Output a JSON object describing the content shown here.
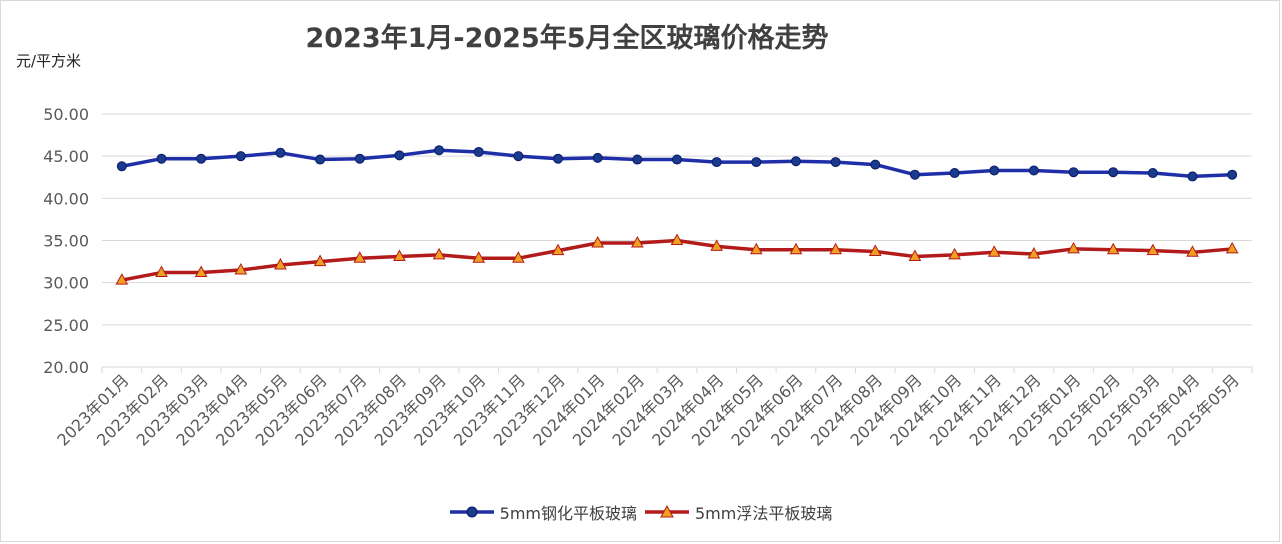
{
  "title": "2023年1月-2025年5月全区玻璃价格走势",
  "unit_label": "元/平方米",
  "colors": {
    "tempered": "#1f2fa8",
    "tempered_marker": "#1a3a8c",
    "float": "#b31b1b",
    "float_marker": "#f0a020",
    "grid": "#d9d9d9",
    "axis_text": "#595959"
  },
  "chart_data": {
    "type": "line",
    "title": "2023年1月-2025年5月全区玻璃价格走势",
    "ylabel": "元/平方米",
    "xlabel": "",
    "ylim": [
      20,
      50
    ],
    "yticks": [
      "20.00",
      "25.00",
      "30.00",
      "35.00",
      "40.00",
      "45.00",
      "50.00"
    ],
    "grid": true,
    "legend_position": "bottom",
    "categories": [
      "2023年01月",
      "2023年02月",
      "2023年03月",
      "2023年04月",
      "2023年05月",
      "2023年06月",
      "2023年07月",
      "2023年08月",
      "2023年09月",
      "2023年10月",
      "2023年11月",
      "2023年12月",
      "2024年01月",
      "2024年02月",
      "2024年03月",
      "2024年04月",
      "2024年05月",
      "2024年06月",
      "2024年07月",
      "2024年08月",
      "2024年09月",
      "2024年10月",
      "2024年11月",
      "2024年12月",
      "2025年01月",
      "2025年02月",
      "2025年03月",
      "2025年04月",
      "2025年05月"
    ],
    "series": [
      {
        "name": "5mm钢化平板玻璃",
        "marker": "circle",
        "values": [
          43.8,
          44.7,
          44.7,
          45.0,
          45.4,
          44.6,
          44.7,
          45.1,
          45.7,
          45.5,
          45.0,
          44.7,
          44.8,
          44.6,
          44.6,
          44.3,
          44.3,
          44.4,
          44.3,
          44.0,
          42.8,
          43.0,
          43.3,
          43.3,
          43.1,
          43.1,
          43.0,
          42.6,
          42.8
        ]
      },
      {
        "name": "5mm浮法平板玻璃",
        "marker": "triangle",
        "values": [
          30.3,
          31.2,
          31.2,
          31.5,
          32.1,
          32.5,
          32.9,
          33.1,
          33.3,
          32.9,
          32.9,
          33.8,
          34.7,
          34.7,
          35.0,
          34.3,
          33.9,
          33.9,
          33.9,
          33.7,
          33.1,
          33.3,
          33.6,
          33.4,
          34.0,
          33.9,
          33.8,
          33.6,
          34.0
        ]
      }
    ]
  }
}
